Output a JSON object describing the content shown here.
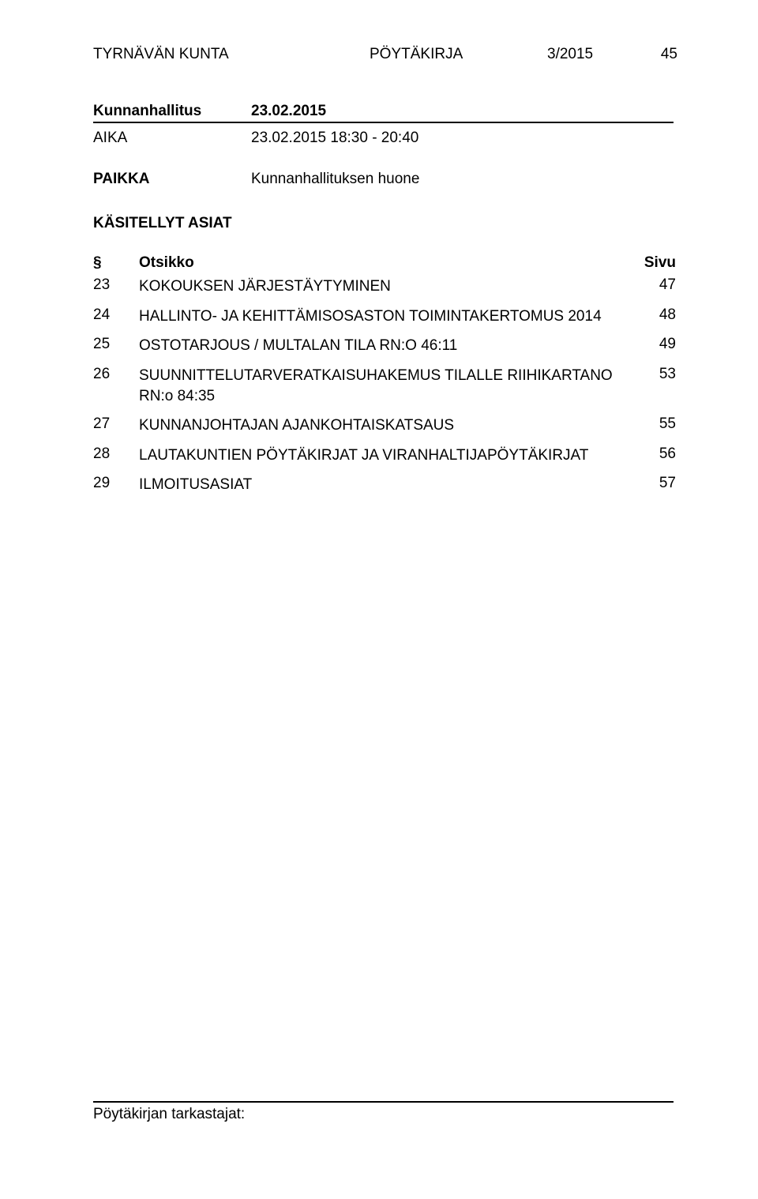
{
  "header": {
    "org": "TYRNÄVÄN KUNTA",
    "doc_type": "PÖYTÄKIRJA",
    "index": "3/2015",
    "page": "45"
  },
  "session": {
    "body": "Kunnanhallitus",
    "date": "23.02.2015"
  },
  "aika": {
    "label": "AIKA",
    "value": "23.02.2015 18:30 - 20:40"
  },
  "paikka": {
    "label": "PAIKKA",
    "value": "Kunnanhallituksen huone"
  },
  "kasitellyt": "KÄSITELLYT ASIAT",
  "table_header": {
    "sym": "§",
    "title": "Otsikko",
    "page": "Sivu"
  },
  "items": [
    {
      "num": "23",
      "title": "KOKOUKSEN JÄRJESTÄYTYMINEN",
      "page": "47"
    },
    {
      "num": "24",
      "title": "HALLINTO- JA KEHITTÄMISOSASTON TOIMINTAKERTOMUS 2014",
      "page": "48"
    },
    {
      "num": "25",
      "title": "OSTOTARJOUS / MULTALAN TILA RN:O 46:11",
      "page": "49"
    },
    {
      "num": "26",
      "title": "SUUNNITTELUTARVERATKAISUHAKEMUS TILALLE RIIHIKARTANO RN:o 84:35",
      "page": "53"
    },
    {
      "num": "27",
      "title": "KUNNANJOHTAJAN AJANKOHTAISKATSAUS",
      "page": "55"
    },
    {
      "num": "28",
      "title": "LAUTAKUNTIEN PÖYTÄKIRJAT JA VIRANHALTIJAPÖYTÄKIRJAT",
      "page": "56"
    },
    {
      "num": "29",
      "title": "ILMOITUSASIAT",
      "page": "57"
    }
  ],
  "footer": "Pöytäkirjan tarkastajat:"
}
